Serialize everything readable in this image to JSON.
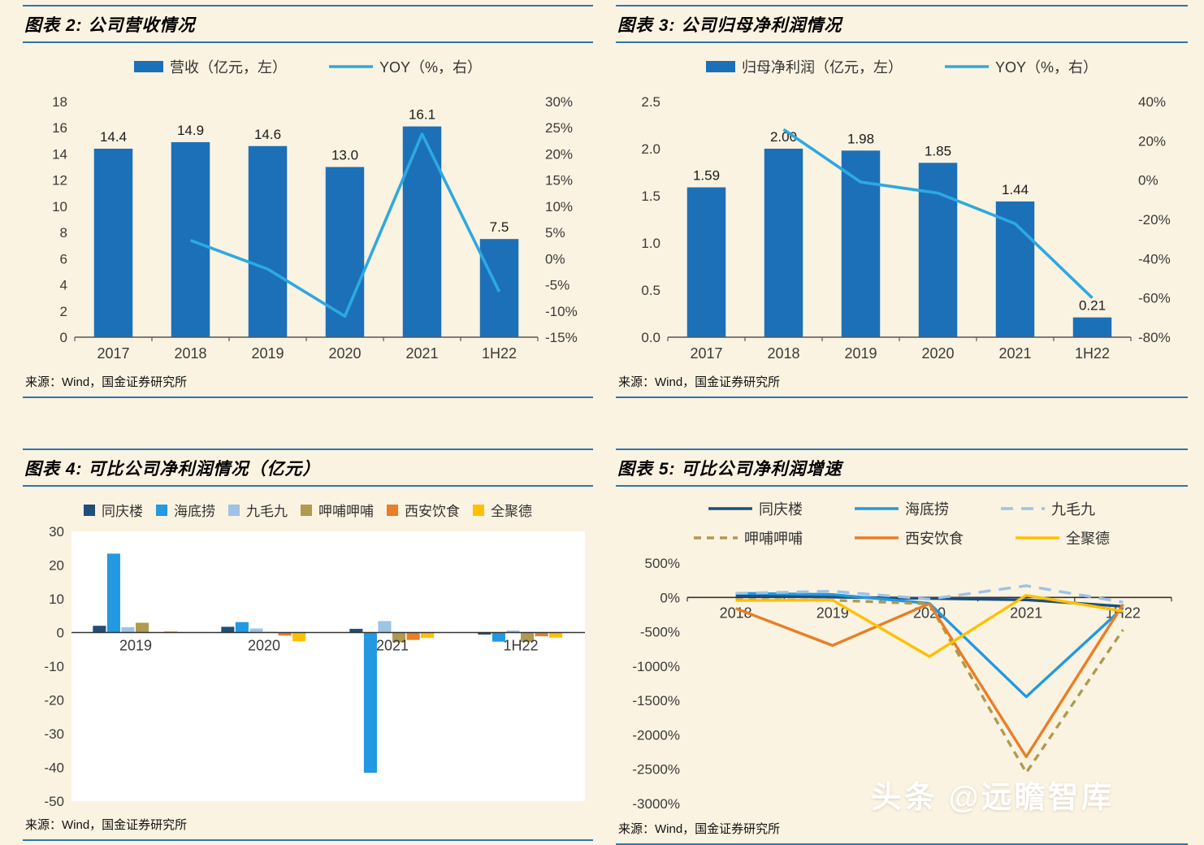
{
  "page": {
    "background": "#FBF3E1",
    "rule_color": "#2E74B5",
    "watermark": "头条 @远瞻智库"
  },
  "chart_data": [
    {
      "id": "company-revenue",
      "type": "bar",
      "title": "图表 2: 公司营收情况",
      "source": "来源：Wind，国金证券研究所",
      "categories": [
        "2017",
        "2018",
        "2019",
        "2020",
        "2021",
        "1H22"
      ],
      "bars": {
        "name": "营收（亿元，左）",
        "color": "#1C70B8",
        "values": [
          14.4,
          14.9,
          14.6,
          13.0,
          16.1,
          7.5
        ],
        "label_decimals": 1
      },
      "line": {
        "name": "YOY（%，右）",
        "color": "#2DA9E1",
        "values": [
          null,
          3.5,
          -2.0,
          -11.0,
          23.8,
          -6.3
        ]
      },
      "left_axis": {
        "min": 0,
        "max": 18,
        "step": 2,
        "decimals": 0
      },
      "right_axis": {
        "min": -15,
        "max": 30,
        "step": 5,
        "suffix": "%"
      },
      "legend_position": "top",
      "grid": false
    },
    {
      "id": "company-net-profit",
      "type": "bar",
      "title": "图表 3: 公司归母净利润情况",
      "source": "来源：Wind，国金证券研究所",
      "categories": [
        "2017",
        "2018",
        "2019",
        "2020",
        "2021",
        "1H22"
      ],
      "bars": {
        "name": "归母净利润（亿元，左）",
        "color": "#1C70B8",
        "values": [
          1.59,
          2.0,
          1.98,
          1.85,
          1.44,
          0.21
        ],
        "label_decimals": 2
      },
      "line": {
        "name": "YOY（%，右）",
        "color": "#2DA9E1",
        "values": [
          null,
          25.8,
          -1.0,
          -6.6,
          -22.2,
          -60.0
        ]
      },
      "left_axis": {
        "min": 0,
        "max": 2.5,
        "step": 0.5,
        "decimals": 1
      },
      "right_axis": {
        "min": -80,
        "max": 40,
        "step": 20,
        "suffix": "%"
      },
      "legend_position": "top",
      "grid": false
    },
    {
      "id": "peer-net-profit",
      "type": "bar",
      "title": "图表 4: 可比公司净利润情况（亿元）",
      "source": "来源：Wind，国金证券研究所",
      "categories": [
        "2019",
        "2020",
        "2021",
        "1H22"
      ],
      "series": [
        {
          "name": "同庆楼",
          "color": "#1F4E79",
          "values": [
            2.0,
            1.7,
            1.1,
            -0.6
          ]
        },
        {
          "name": "海底捞",
          "color": "#2299E0",
          "values": [
            23.4,
            3.1,
            -41.6,
            -2.7
          ]
        },
        {
          "name": "九毛九",
          "color": "#9DC3E6",
          "values": [
            1.6,
            1.2,
            3.4,
            0.6
          ]
        },
        {
          "name": "呷哺呷哺",
          "color": "#B09A51",
          "values": [
            2.9,
            0.2,
            -2.9,
            -2.8
          ]
        },
        {
          "name": "西安饮食",
          "color": "#E97E26",
          "values": [
            0.0,
            -0.9,
            -2.2,
            -1.1
          ]
        },
        {
          "name": "全聚德",
          "color": "#FFC000",
          "values": [
            0.4,
            -2.6,
            -1.6,
            -1.5
          ]
        }
      ],
      "ylim": [
        -50,
        30
      ],
      "axis": {
        "min": -50,
        "max": 30,
        "step": 10
      },
      "legend_position": "top",
      "plot_background": "#FFFFFF",
      "grid": false
    },
    {
      "id": "peer-net-profit-growth",
      "type": "line",
      "title": "图表 5: 可比公司净利润增速",
      "source": "来源：Wind，国金证券研究所",
      "categories": [
        "2018",
        "2019",
        "2020",
        "2021",
        "1H22"
      ],
      "series": [
        {
          "name": "同庆楼",
          "color": "#1F4E79",
          "dash": null,
          "values": [
            25,
            5,
            -15,
            -35,
            -130
          ]
        },
        {
          "name": "海底捞",
          "color": "#2299E0",
          "dash": null,
          "values": [
            60,
            42,
            -87,
            -1446,
            -150
          ]
        },
        {
          "name": "九毛九",
          "color": "#9DC3E6",
          "dash": "15,10",
          "values": [
            60,
            90,
            -25,
            170,
            -70
          ]
        },
        {
          "name": "呷哺呷哺",
          "color": "#B09A51",
          "dash": "9,7",
          "values": [
            -30,
            -40,
            -95,
            -2550,
            -470
          ]
        },
        {
          "name": "西安饮食",
          "color": "#E97E26",
          "dash": null,
          "values": [
            -160,
            -700,
            -90,
            -2320,
            -100
          ]
        },
        {
          "name": "全聚德",
          "color": "#FFC000",
          "dash": null,
          "values": [
            -45,
            -40,
            -860,
            30,
            -200
          ]
        }
      ],
      "ylim": [
        -3000,
        500
      ],
      "axis": {
        "min": -3000,
        "max": 500,
        "step": 500,
        "suffix": "%"
      },
      "legend_position": "top",
      "grid": false
    }
  ]
}
